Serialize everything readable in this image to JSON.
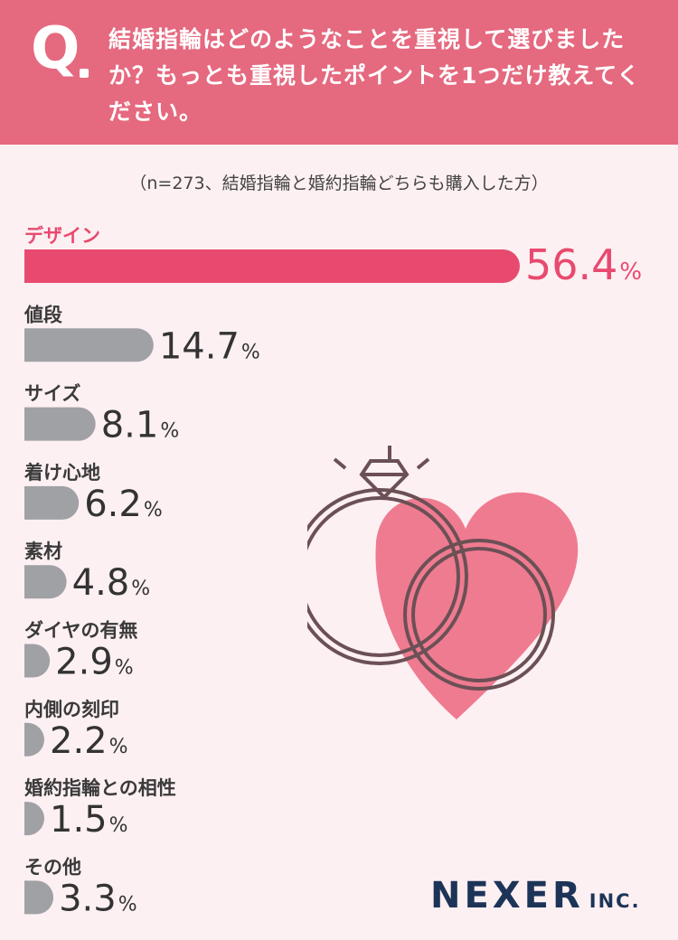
{
  "question": {
    "mark": "Q",
    "text": "結婚指輪はどのようなことを重視して選びましたか？もっとも重視したポイントを1つだけ教えてください。"
  },
  "note": "（n=273、結婚指輪と婚約指輪どちらも購入した方）",
  "logo": {
    "main": "NEXER",
    "suffix": "INC."
  },
  "colors": {
    "header": "#e5697f",
    "highlight": "#e84a6f",
    "bar": "#a0a1a5",
    "background": "#fdf0f2"
  },
  "chart_data": {
    "type": "bar",
    "orientation": "horizontal",
    "unit": "%",
    "categories": [
      "デザイン",
      "値段",
      "サイズ",
      "着け心地",
      "素材",
      "ダイヤの有無",
      "内側の刻印",
      "婚約指輪との相性",
      "その他"
    ],
    "values": [
      56.4,
      14.7,
      8.1,
      6.2,
      4.8,
      2.9,
      2.2,
      1.5,
      3.3
    ],
    "value_labels": [
      "56.4",
      "14.7",
      "8.1",
      "6.2",
      "4.8",
      "2.9",
      "2.2",
      "1.5",
      "3.3"
    ],
    "highlight_index": 0
  }
}
